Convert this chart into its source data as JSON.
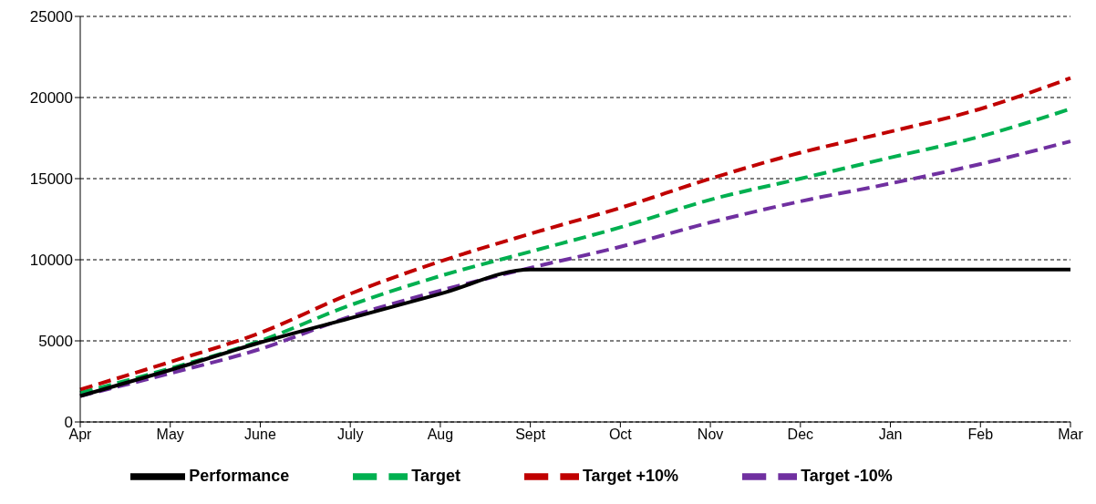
{
  "chart_data": {
    "type": "line",
    "categories": [
      "Apr",
      "May",
      "June",
      "July",
      "Aug",
      "Sept",
      "Oct",
      "Nov",
      "Dec",
      "Jan",
      "Feb",
      "Mar"
    ],
    "series": [
      {
        "name": "Target",
        "color": "#00b050",
        "line_style": "dashed",
        "values": [
          1800,
          3300,
          5000,
          7200,
          9000,
          10500,
          12000,
          13700,
          15000,
          16300,
          17600,
          19300
        ]
      },
      {
        "name": "Target +10%",
        "color": "#c00000",
        "line_style": "dashed",
        "values": [
          2000,
          3700,
          5500,
          7900,
          9900,
          11600,
          13200,
          15000,
          16600,
          17900,
          19300,
          21200
        ]
      },
      {
        "name": "Target -10%",
        "color": "#7030a0",
        "line_style": "dashed",
        "values": [
          1600,
          3000,
          4500,
          6500,
          8100,
          9500,
          10800,
          12300,
          13600,
          14700,
          15900,
          17300
        ]
      },
      {
        "name": "Performance",
        "color": "#000000",
        "line_style": "solid",
        "values": [
          1600,
          3200,
          4900,
          6400,
          7900,
          9400,
          9400,
          9400,
          9400,
          9400,
          9400,
          9400
        ]
      }
    ],
    "ylim": [
      0,
      25000
    ],
    "yticks": [
      0,
      5000,
      10000,
      15000,
      20000,
      25000
    ],
    "grid": "y",
    "legend": "bottom",
    "marker": "none"
  }
}
